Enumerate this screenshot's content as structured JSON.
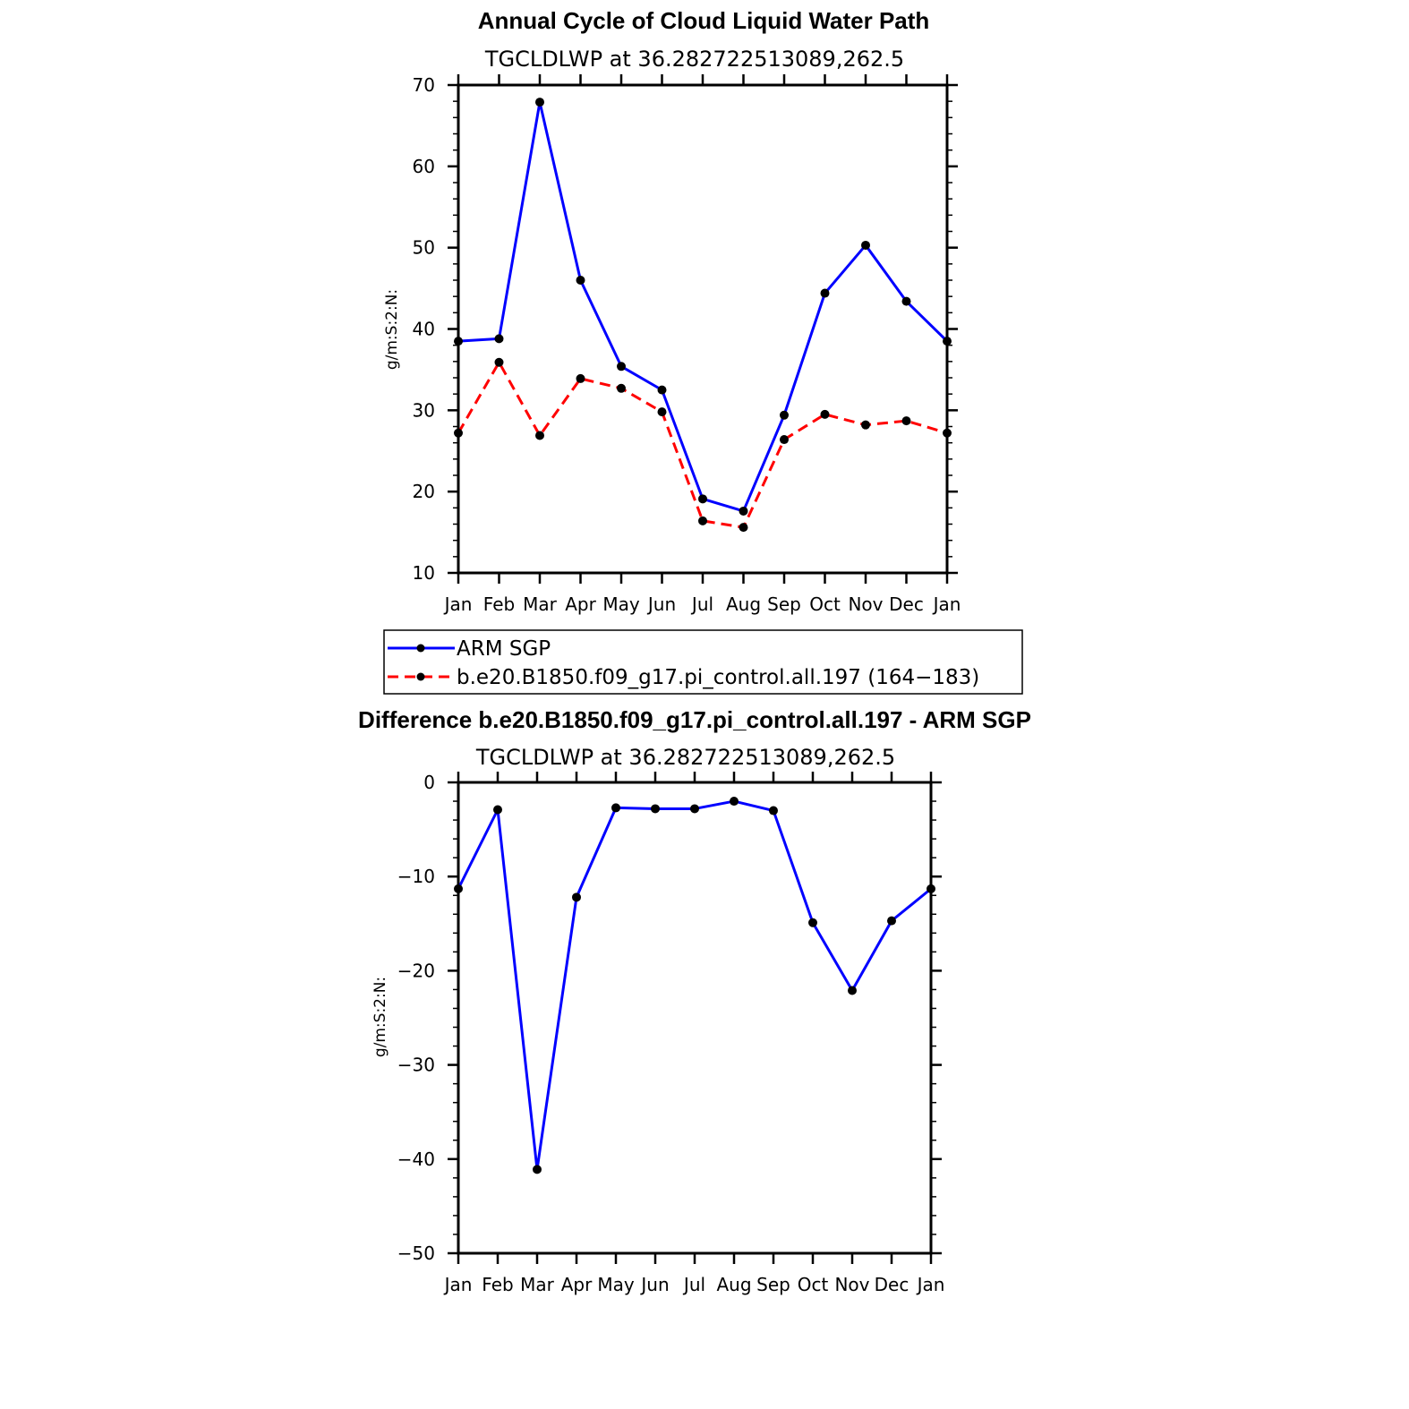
{
  "chart_data": [
    {
      "type": "line",
      "title": "Annual Cycle of Cloud Liquid Water Path",
      "subtitle": "TGCLDLWP at 36.282722513089,262.5",
      "xlabel": "",
      "ylabel": "g/m:S:2:N:",
      "categories": [
        "Jan",
        "Feb",
        "Mar",
        "Apr",
        "May",
        "Jun",
        "Jul",
        "Aug",
        "Sep",
        "Oct",
        "Nov",
        "Dec",
        "Jan"
      ],
      "ylim": [
        10,
        70
      ],
      "yticks": [
        10,
        20,
        30,
        40,
        50,
        60,
        70
      ],
      "series": [
        {
          "name": "ARM SGP",
          "color": "#0000ff",
          "dash": "solid",
          "values": [
            38.5,
            38.8,
            67.9,
            46.0,
            35.4,
            32.5,
            19.1,
            17.6,
            29.4,
            44.4,
            50.3,
            43.4,
            38.5
          ]
        },
        {
          "name": "b.e20.B1850.f09_g17.pi_control.all.197 (164−183)",
          "color": "#ff0000",
          "dash": "dashed",
          "values": [
            27.2,
            35.9,
            26.9,
            33.9,
            32.7,
            29.8,
            16.4,
            15.6,
            26.4,
            29.5,
            28.2,
            28.7,
            27.2
          ]
        }
      ],
      "legend_placement": "below"
    },
    {
      "type": "line",
      "title": "Difference b.e20.B1850.f09_g17.pi_control.all.197 - ARM SGP",
      "subtitle": "TGCLDLWP at 36.282722513089,262.5",
      "xlabel": "",
      "ylabel": "g/m:S:2:N:",
      "categories": [
        "Jan",
        "Feb",
        "Mar",
        "Apr",
        "May",
        "Jun",
        "Jul",
        "Aug",
        "Sep",
        "Oct",
        "Nov",
        "Dec",
        "Jan"
      ],
      "ylim": [
        -50,
        0
      ],
      "yticks": [
        0,
        -10,
        -20,
        -30,
        -40,
        -50
      ],
      "series": [
        {
          "color": "#0000ff",
          "dash": "solid",
          "values": [
            -11.3,
            -2.9,
            -41.1,
            -12.2,
            -2.7,
            -2.8,
            -2.8,
            -2.0,
            -3.0,
            -14.9,
            -22.1,
            -14.7,
            -11.3
          ]
        }
      ]
    }
  ]
}
